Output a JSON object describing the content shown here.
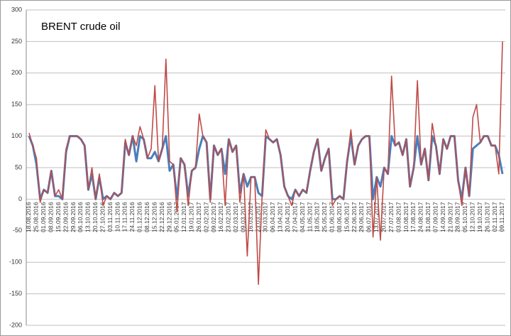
{
  "chart_data": {
    "type": "line",
    "title": "BRENT crude oil",
    "categories": [
      "18.08.2016",
      null,
      "25.08.2016",
      null,
      "01.09.2016",
      null,
      "08.09.2016",
      null,
      "15.09.2016",
      null,
      "22.09.2016",
      null,
      "29.09.2016",
      null,
      "06.10.2016",
      null,
      "13.10.2016",
      null,
      "20.10.2016",
      null,
      "27.10.2016",
      null,
      "03.11.2016",
      null,
      "10.11.2016",
      null,
      "17.11.2016",
      null,
      "24.11.2016",
      null,
      "01.12.2016",
      null,
      "08.12.2016",
      null,
      "15.12.2016",
      null,
      "22.12.2016",
      null,
      "29.12.2016",
      null,
      "05.01.2017",
      null,
      "12.01.2017",
      null,
      "19.01.2017",
      null,
      "26.01.2017",
      null,
      "02.02.2017",
      null,
      "09.02.2017",
      null,
      "16.02.2017",
      null,
      "23.02.2017",
      null,
      "02.03.2017",
      null,
      "09.03.2017",
      null,
      "16.03.2017",
      null,
      "23.03.2017",
      null,
      "30.03.2017",
      null,
      "06.04.2017",
      null,
      "13.04.2017",
      null,
      "20.04.2017",
      null,
      "27.04.2017",
      null,
      "04.05.2017",
      null,
      "11.05.2017",
      null,
      "18.05.2017",
      null,
      "25.05.2017",
      null,
      "01.06.2017",
      null,
      "08.06.2017",
      null,
      "15.06.2017",
      null,
      "22.06.2017",
      null,
      "29.06.2017",
      null,
      "06.07.2017",
      null,
      "13.07.2017",
      null,
      "20.07.2017",
      null,
      "27.07.2017",
      null,
      "03.08.2017",
      null,
      "10.08.2017",
      null,
      "17.08.2017",
      null,
      "24.08.2017",
      null,
      "31.08.2017",
      null,
      "07.09.2017",
      null,
      "14.09.2017",
      null,
      "21.09.2017",
      null,
      "28.09.2017",
      null,
      "05.10.2017",
      null,
      "12.10.2017",
      null,
      "19.10.2017",
      null,
      "26.10.2017",
      null,
      "02.11.2017",
      null,
      "09.11.2017"
    ],
    "series": [
      {
        "color": "#4a7ebb",
        "values": [
          100,
          85,
          55,
          0,
          15,
          10,
          45,
          5,
          5,
          0,
          75,
          100,
          100,
          100,
          95,
          85,
          15,
          40,
          0,
          35,
          0,
          5,
          0,
          10,
          5,
          10,
          90,
          70,
          100,
          60,
          100,
          95,
          65,
          65,
          75,
          60,
          80,
          100,
          45,
          55,
          0,
          65,
          55,
          5,
          45,
          50,
          80,
          100,
          90,
          0,
          85,
          70,
          80,
          40,
          95,
          75,
          85,
          10,
          40,
          20,
          35,
          35,
          10,
          5,
          100,
          95,
          90,
          95,
          70,
          20,
          5,
          0,
          15,
          5,
          15,
          10,
          45,
          75,
          95,
          45,
          65,
          80,
          0,
          0,
          5,
          0,
          60,
          100,
          55,
          85,
          95,
          100,
          100,
          0,
          35,
          20,
          50,
          40,
          100,
          85,
          90,
          70,
          95,
          20,
          50,
          100,
          55,
          80,
          30,
          100,
          85,
          40,
          95,
          80,
          100,
          100,
          30,
          0,
          50,
          5,
          80,
          85,
          90,
          100,
          100,
          85,
          85,
          70,
          40
        ]
      },
      {
        "color": "#be4b48",
        "values": [
          105,
          85,
          65,
          -5,
          15,
          10,
          45,
          5,
          15,
          0,
          80,
          100,
          100,
          100,
          95,
          85,
          15,
          50,
          0,
          40,
          -10,
          5,
          0,
          10,
          5,
          10,
          95,
          70,
          100,
          85,
          115,
          95,
          65,
          80,
          180,
          60,
          80,
          222,
          60,
          55,
          -20,
          65,
          55,
          -10,
          45,
          50,
          135,
          100,
          90,
          -5,
          85,
          70,
          80,
          -10,
          95,
          75,
          85,
          -5,
          40,
          -90,
          35,
          35,
          -135,
          5,
          110,
          95,
          90,
          95,
          70,
          20,
          5,
          -10,
          15,
          5,
          15,
          10,
          45,
          75,
          95,
          45,
          65,
          80,
          -10,
          0,
          5,
          0,
          60,
          110,
          55,
          85,
          95,
          100,
          100,
          -60,
          35,
          -65,
          50,
          40,
          195,
          85,
          90,
          70,
          95,
          20,
          50,
          188,
          55,
          80,
          30,
          120,
          85,
          40,
          95,
          80,
          100,
          100,
          30,
          -10,
          50,
          5,
          130,
          150,
          90,
          100,
          100,
          85,
          85,
          40,
          250
        ]
      }
    ],
    "ylim": [
      -200,
      300
    ],
    "yticks": [
      -200,
      -150,
      -100,
      -50,
      0,
      50,
      100,
      150,
      200,
      250,
      300
    ],
    "grid": true
  }
}
